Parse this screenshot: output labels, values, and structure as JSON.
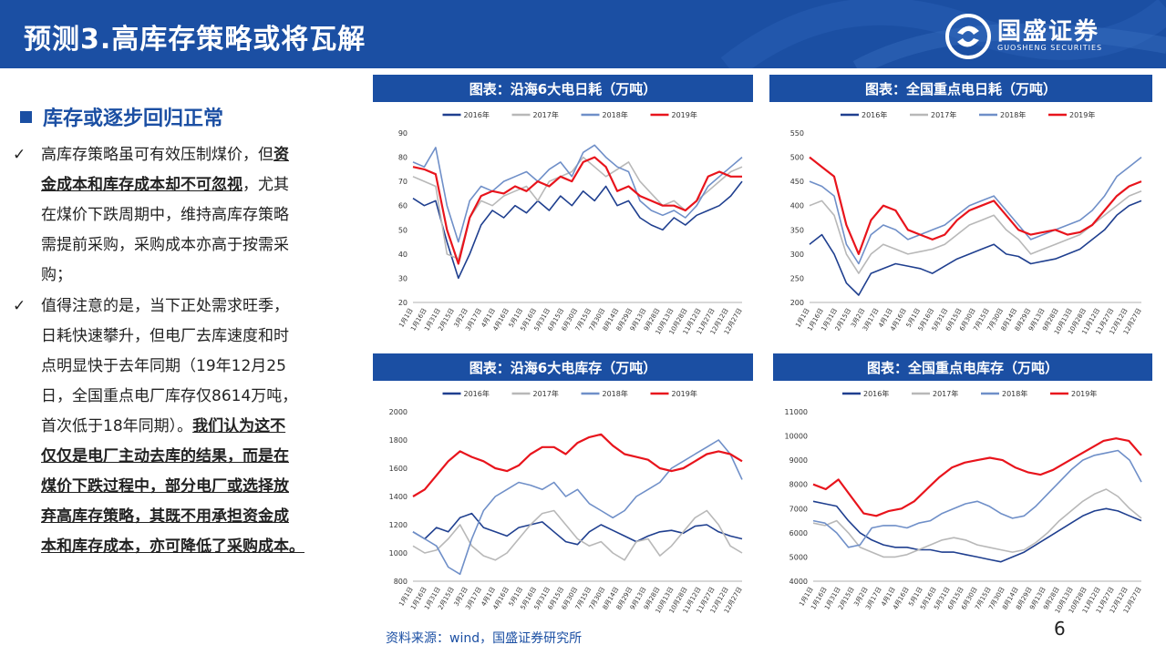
{
  "header": {
    "title": "预测3.高库存策略或将瓦解",
    "logo_name": "国盛证券",
    "logo_sub": "GUOSHENG SECURITIES"
  },
  "left": {
    "section_title": "库存或逐步回归正常",
    "bullet1": {
      "check": "✓",
      "lines": [
        {
          "parts": [
            {
              "t": "高库存策略虽可有效压制煤价，但",
              "b": false
            },
            {
              "t": "资",
              "b": true
            }
          ]
        },
        {
          "parts": [
            {
              "t": "金成本和库存成本却不可忽视",
              "b": true
            },
            {
              "t": "，尤其",
              "b": false
            }
          ]
        },
        {
          "parts": [
            {
              "t": "在煤价下跌周期中，维持高库存策略",
              "b": false
            }
          ]
        },
        {
          "parts": [
            {
              "t": "需提前采购，采购成本亦高于按需采",
              "b": false
            }
          ]
        },
        {
          "parts": [
            {
              "t": "购；",
              "b": false
            }
          ]
        }
      ]
    },
    "bullet2": {
      "check": "✓",
      "lines": [
        {
          "parts": [
            {
              "t": "值得注意的是，当下正处需求旺季，",
              "b": false
            }
          ]
        },
        {
          "parts": [
            {
              "t": "日耗快速攀升，但电厂去库速度和时",
              "b": false
            }
          ]
        },
        {
          "parts": [
            {
              "t": "点明显快于去年同期（19年12月25",
              "b": false
            }
          ]
        },
        {
          "parts": [
            {
              "t": "日，全国重点电厂库存仅8614万吨，",
              "b": false
            }
          ]
        },
        {
          "parts": [
            {
              "t": "首次低于18年同期）。",
              "b": false
            },
            {
              "t": "我们认为这不",
              "b": true
            }
          ]
        },
        {
          "parts": [
            {
              "t": "仅仅是电厂主动去库的结果，而是在",
              "b": true
            }
          ]
        },
        {
          "parts": [
            {
              "t": "煤价下跌过程中，部分电厂或选择放",
              "b": true
            }
          ]
        },
        {
          "parts": [
            {
              "t": "弃高库存策略，其既不用承担资金成",
              "b": true
            }
          ]
        },
        {
          "parts": [
            {
              "t": "本和库存成本，亦可降低了采购成本。",
              "b": true
            }
          ]
        }
      ]
    }
  },
  "chart_data": [
    {
      "type": "line",
      "title": "图表：沿海6大电日耗（万吨）",
      "ylim": [
        20,
        90
      ],
      "yticks": [
        "20",
        "30",
        "40",
        "50",
        "60",
        "70",
        "80",
        "90"
      ],
      "xticks": [
        "1月1日",
        "1月16日",
        "1月31日",
        "2月15日",
        "3月2日",
        "3月17日",
        "4月1日",
        "4月16日",
        "5月1日",
        "5月16日",
        "5月31日",
        "6月15日",
        "6月30日",
        "7月15日",
        "7月30日",
        "8月14日",
        "8月29日",
        "9月13日",
        "9月28日",
        "10月13日",
        "10月28日",
        "11月12日",
        "11月27日",
        "12月12日",
        "12月27日"
      ],
      "series": [
        {
          "name": "2016年",
          "color": "#1f3f8f",
          "values": [
            63,
            60,
            62,
            45,
            30,
            40,
            52,
            58,
            55,
            60,
            57,
            62,
            58,
            64,
            60,
            66,
            62,
            68,
            60,
            62,
            55,
            52,
            50,
            55,
            52,
            56,
            58,
            60,
            64,
            70
          ]
        },
        {
          "name": "2017年",
          "color": "#b8b8b8",
          "values": [
            72,
            70,
            68,
            40,
            38,
            55,
            62,
            60,
            64,
            66,
            68,
            62,
            70,
            72,
            74,
            80,
            76,
            72,
            75,
            78,
            70,
            65,
            60,
            62,
            58,
            62,
            66,
            70,
            74,
            76
          ]
        },
        {
          "name": "2018年",
          "color": "#6f8fc8",
          "values": [
            78,
            76,
            84,
            60,
            45,
            62,
            68,
            66,
            70,
            72,
            74,
            70,
            75,
            78,
            72,
            82,
            85,
            80,
            76,
            74,
            62,
            58,
            56,
            58,
            55,
            60,
            68,
            72,
            76,
            80
          ]
        },
        {
          "name": "2019年",
          "color": "#e8141c",
          "values": [
            76,
            75,
            73,
            50,
            36,
            55,
            64,
            66,
            65,
            68,
            66,
            70,
            68,
            72,
            70,
            78,
            80,
            76,
            66,
            68,
            64,
            62,
            60,
            60,
            58,
            62,
            72,
            74,
            72,
            72
          ]
        }
      ]
    },
    {
      "type": "line",
      "title": "图表：全国重点电日耗（万吨）",
      "ylim": [
        200,
        550
      ],
      "yticks": [
        "200",
        "250",
        "300",
        "350",
        "400",
        "450",
        "500",
        "550"
      ],
      "xticks": [
        "1月1日",
        "1月16日",
        "1月31日",
        "2月15日",
        "3月2日",
        "3月17日",
        "4月1日",
        "4月16日",
        "5月1日",
        "5月16日",
        "5月31日",
        "6月15日",
        "6月30日",
        "7月15日",
        "7月30日",
        "8月14日",
        "8月29日",
        "9月13日",
        "9月28日",
        "10月13日",
        "10月28日",
        "11月12日",
        "11月27日",
        "12月12日",
        "12月27日"
      ],
      "series": [
        {
          "name": "2016年",
          "color": "#1f3f8f",
          "values": [
            320,
            340,
            300,
            240,
            215,
            260,
            270,
            280,
            275,
            270,
            260,
            275,
            290,
            300,
            310,
            320,
            300,
            295,
            280,
            285,
            290,
            300,
            310,
            330,
            350,
            380,
            400,
            410
          ]
        },
        {
          "name": "2017年",
          "color": "#b8b8b8",
          "values": [
            400,
            410,
            380,
            300,
            260,
            300,
            320,
            310,
            300,
            305,
            310,
            320,
            340,
            360,
            370,
            380,
            350,
            330,
            300,
            310,
            320,
            330,
            340,
            360,
            380,
            400,
            420,
            430
          ]
        },
        {
          "name": "2018年",
          "color": "#6f8fc8",
          "values": [
            450,
            440,
            420,
            320,
            280,
            340,
            360,
            350,
            330,
            340,
            350,
            360,
            380,
            400,
            410,
            420,
            390,
            360,
            330,
            340,
            350,
            360,
            370,
            390,
            420,
            460,
            480,
            500
          ]
        },
        {
          "name": "2019年",
          "color": "#e8141c",
          "values": [
            500,
            480,
            460,
            360,
            300,
            370,
            400,
            390,
            350,
            340,
            330,
            340,
            370,
            390,
            400,
            410,
            380,
            350,
            340,
            345,
            350,
            340,
            345,
            360,
            390,
            420,
            440,
            450
          ]
        }
      ]
    },
    {
      "type": "line",
      "title": "图表：沿海6大电库存（万吨）",
      "ylim": [
        800,
        2000
      ],
      "yticks": [
        "800",
        "1000",
        "1200",
        "1400",
        "1600",
        "1800",
        "2000"
      ],
      "xticks": [
        "1月1日",
        "1月16日",
        "1月31日",
        "2月15日",
        "3月2日",
        "3月17日",
        "4月1日",
        "4月16日",
        "5月1日",
        "5月16日",
        "5月31日",
        "6月15日",
        "6月30日",
        "7月15日",
        "7月30日",
        "8月14日",
        "8月29日",
        "9月13日",
        "9月28日",
        "10月13日",
        "10月28日",
        "11月12日",
        "11月27日",
        "12月12日",
        "12月27日"
      ],
      "series": [
        {
          "name": "2016年",
          "color": "#1f3f8f",
          "values": [
            1150,
            1100,
            1180,
            1150,
            1250,
            1280,
            1180,
            1150,
            1120,
            1180,
            1200,
            1220,
            1150,
            1080,
            1060,
            1150,
            1200,
            1160,
            1120,
            1080,
            1120,
            1150,
            1160,
            1140,
            1190,
            1200,
            1150,
            1120,
            1100
          ]
        },
        {
          "name": "2017年",
          "color": "#b8b8b8",
          "values": [
            1050,
            1000,
            1020,
            1100,
            1200,
            1050,
            980,
            950,
            1000,
            1100,
            1200,
            1280,
            1300,
            1200,
            1100,
            1050,
            1080,
            1000,
            950,
            1080,
            1100,
            980,
            1050,
            1150,
            1250,
            1300,
            1200,
            1050,
            1000
          ]
        },
        {
          "name": "2018年",
          "color": "#6f8fc8",
          "values": [
            1150,
            1100,
            1050,
            900,
            850,
            1100,
            1300,
            1400,
            1450,
            1500,
            1480,
            1450,
            1500,
            1400,
            1450,
            1350,
            1300,
            1250,
            1300,
            1400,
            1450,
            1500,
            1600,
            1650,
            1700,
            1750,
            1800,
            1700,
            1520
          ]
        },
        {
          "name": "2019年",
          "color": "#e8141c",
          "values": [
            1400,
            1450,
            1550,
            1650,
            1720,
            1680,
            1650,
            1600,
            1580,
            1620,
            1700,
            1750,
            1750,
            1700,
            1780,
            1820,
            1840,
            1760,
            1700,
            1680,
            1660,
            1600,
            1580,
            1600,
            1650,
            1700,
            1720,
            1700,
            1650
          ]
        }
      ]
    },
    {
      "type": "line",
      "title": "图表：全国重点电库存（万吨）",
      "ylim": [
        4000,
        11000
      ],
      "yticks": [
        "4000",
        "5000",
        "6000",
        "7000",
        "8000",
        "9000",
        "10000",
        "11000"
      ],
      "xticks": [
        "1月1日",
        "1月16日",
        "1月31日",
        "2月15日",
        "3月2日",
        "3月17日",
        "4月1日",
        "4月16日",
        "5月1日",
        "5月16日",
        "5月31日",
        "6月15日",
        "6月30日",
        "7月15日",
        "7月30日",
        "8月14日",
        "8月29日",
        "9月13日",
        "9月28日",
        "10月13日",
        "10月28日",
        "11月12日",
        "11月27日",
        "12月12日",
        "12月27日"
      ],
      "series": [
        {
          "name": "2016年",
          "color": "#1f3f8f",
          "values": [
            7300,
            7200,
            7100,
            6500,
            6000,
            5700,
            5500,
            5400,
            5400,
            5300,
            5300,
            5200,
            5200,
            5100,
            5000,
            4900,
            4800,
            5000,
            5200,
            5500,
            5800,
            6100,
            6400,
            6700,
            6900,
            7000,
            6900,
            6700,
            6500
          ]
        },
        {
          "name": "2017年",
          "color": "#b8b8b8",
          "values": [
            6400,
            6300,
            6500,
            6000,
            5400,
            5200,
            5000,
            5000,
            5100,
            5300,
            5500,
            5700,
            5800,
            5700,
            5500,
            5400,
            5300,
            5200,
            5300,
            5600,
            6000,
            6500,
            6900,
            7300,
            7600,
            7800,
            7500,
            7000,
            6600
          ]
        },
        {
          "name": "2018年",
          "color": "#6f8fc8",
          "values": [
            6500,
            6400,
            6000,
            5400,
            5500,
            6200,
            6300,
            6300,
            6200,
            6400,
            6500,
            6800,
            7000,
            7200,
            7300,
            7100,
            6800,
            6600,
            6700,
            7100,
            7600,
            8100,
            8600,
            9000,
            9200,
            9300,
            9400,
            9000,
            8100
          ]
        },
        {
          "name": "2019年",
          "color": "#e8141c",
          "values": [
            8000,
            7800,
            8200,
            7500,
            6800,
            6700,
            6900,
            7000,
            7300,
            7800,
            8300,
            8700,
            8900,
            9000,
            9100,
            9000,
            8700,
            8500,
            8400,
            8600,
            8900,
            9200,
            9500,
            9800,
            9900,
            9800,
            9200
          ]
        }
      ]
    }
  ],
  "source": "资料来源：wind，国盛证券研究所",
  "page_number": "6"
}
